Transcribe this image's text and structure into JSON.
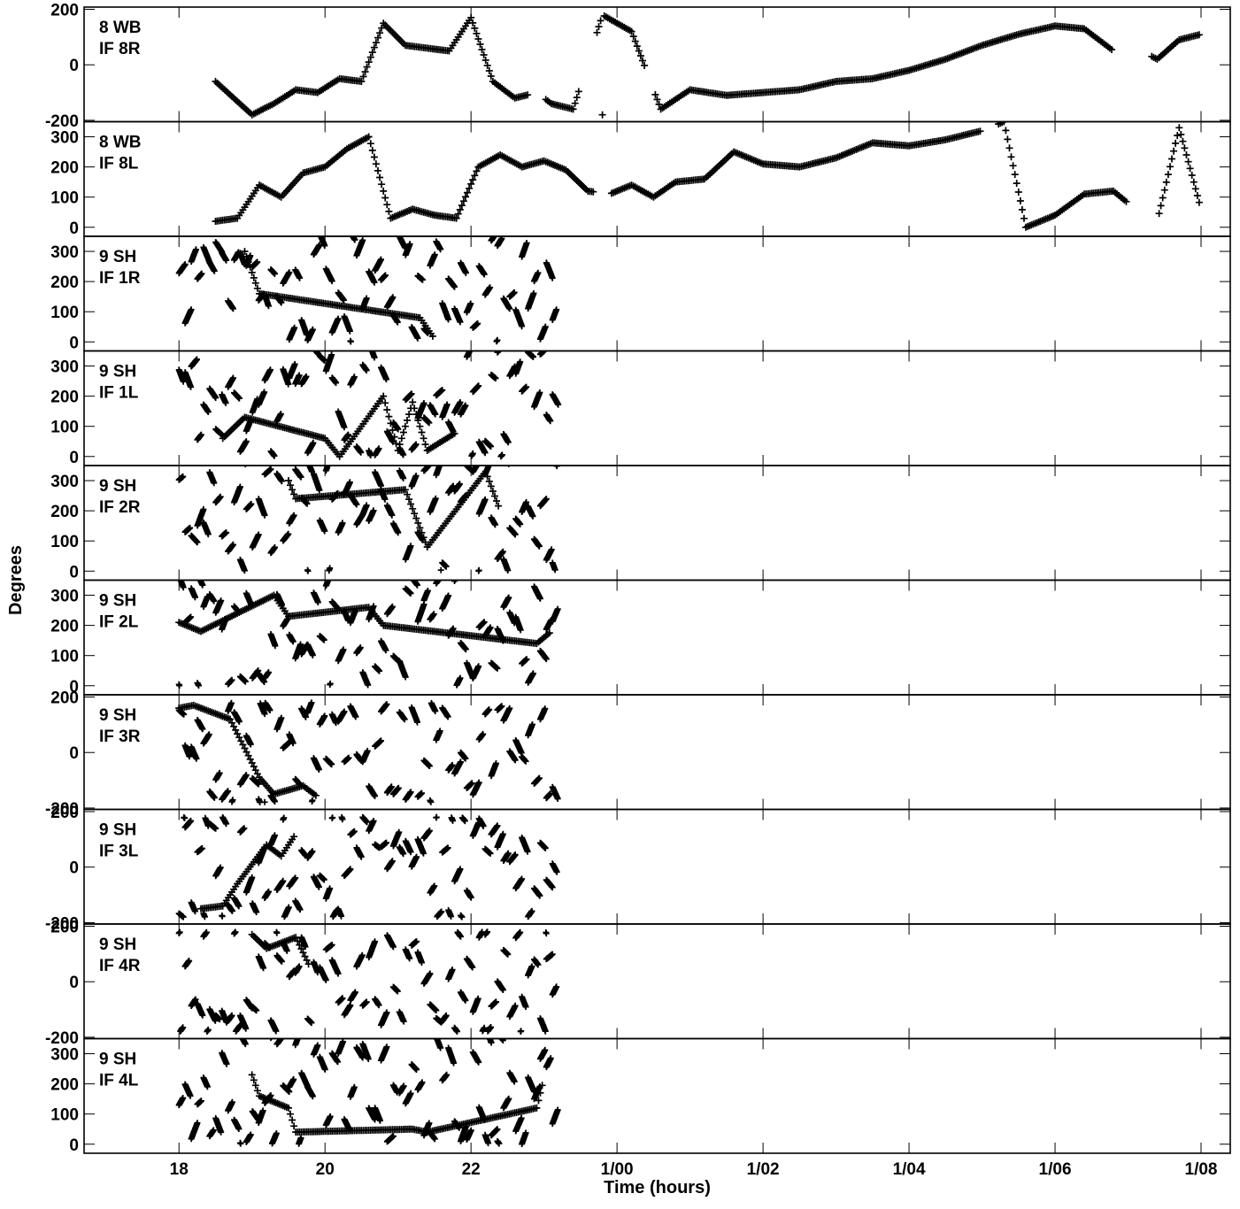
{
  "chart_data": {
    "type": "scatter",
    "marker": "+",
    "xlabel": "Time (hours)",
    "ylabel": "Degrees",
    "x_unit": "hours (18 = 18:00 day 0; 24 = 1/00 next day)",
    "xlim": [
      16.7,
      32.4
    ],
    "x_ticks": [
      {
        "value": 18,
        "label": "18"
      },
      {
        "value": 20,
        "label": "20"
      },
      {
        "value": 22,
        "label": "22"
      },
      {
        "value": 24,
        "label": "1/00"
      },
      {
        "value": 26,
        "label": "1/02"
      },
      {
        "value": 28,
        "label": "1/04"
      },
      {
        "value": 30,
        "label": "1/06"
      },
      {
        "value": 32,
        "label": "1/08"
      }
    ],
    "grid": false,
    "color": "#000000",
    "panels": [
      {
        "line1": "8 WB",
        "line2": "IF 8R",
        "ylim": [
          -205,
          208
        ],
        "yticks": [
          -200,
          0,
          200
        ],
        "kind": "wrap",
        "mod": 360,
        "wrapMin": -180,
        "series": [
          [
            18.5,
            -60
          ],
          [
            19.0,
            -180
          ],
          [
            19.3,
            -140
          ],
          [
            19.6,
            -90
          ],
          [
            19.9,
            -100
          ],
          [
            20.2,
            -50
          ],
          [
            20.5,
            -60
          ],
          [
            20.8,
            150
          ],
          [
            21.1,
            70
          ],
          [
            21.4,
            60
          ],
          [
            21.7,
            50
          ],
          [
            22.0,
            170
          ],
          [
            22.3,
            -60
          ],
          [
            22.6,
            -120
          ],
          [
            22.9,
            -100
          ],
          [
            23.1,
            -140
          ],
          [
            23.4,
            -160
          ],
          [
            23.8,
            180
          ],
          [
            24.2,
            120
          ],
          [
            24.6,
            -160
          ],
          [
            25.0,
            -90
          ],
          [
            25.5,
            -110
          ],
          [
            26.0,
            -100
          ],
          [
            26.5,
            -90
          ],
          [
            27.0,
            -60
          ],
          [
            27.5,
            -50
          ],
          [
            28.0,
            -20
          ],
          [
            28.5,
            20
          ],
          [
            29.0,
            70
          ],
          [
            29.5,
            110
          ],
          [
            30.0,
            140
          ],
          [
            30.4,
            130
          ],
          [
            30.8,
            50
          ],
          [
            31.1,
            60
          ],
          [
            31.4,
            20
          ],
          [
            31.7,
            90
          ],
          [
            32.0,
            110
          ]
        ],
        "gaps": [
          [
            22.8,
            23.0
          ],
          [
            23.5,
            23.7
          ],
          [
            24.4,
            24.5
          ],
          [
            30.8,
            31.3
          ]
        ],
        "dense": null
      },
      {
        "line1": "8 WB",
        "line2": "IF 8L",
        "ylim": [
          -30,
          350
        ],
        "yticks": [
          0,
          100,
          200,
          300
        ],
        "kind": "wrap",
        "mod": 360,
        "wrapMin": 0,
        "series": [
          [
            18.5,
            20
          ],
          [
            18.8,
            30
          ],
          [
            19.1,
            140
          ],
          [
            19.4,
            100
          ],
          [
            19.7,
            180
          ],
          [
            20.0,
            200
          ],
          [
            20.3,
            260
          ],
          [
            20.6,
            300
          ],
          [
            20.9,
            30
          ],
          [
            21.2,
            60
          ],
          [
            21.5,
            40
          ],
          [
            21.8,
            30
          ],
          [
            22.1,
            200
          ],
          [
            22.4,
            240
          ],
          [
            22.7,
            200
          ],
          [
            23.0,
            220
          ],
          [
            23.3,
            190
          ],
          [
            23.6,
            120
          ],
          [
            23.9,
            110
          ],
          [
            24.2,
            140
          ],
          [
            24.5,
            100
          ],
          [
            24.8,
            150
          ],
          [
            25.2,
            160
          ],
          [
            25.6,
            250
          ],
          [
            26.0,
            210
          ],
          [
            26.5,
            200
          ],
          [
            27.0,
            230
          ],
          [
            27.5,
            280
          ],
          [
            28.0,
            270
          ],
          [
            28.5,
            290
          ],
          [
            29.0,
            320
          ],
          [
            29.3,
            350
          ],
          [
            29.6,
            0
          ],
          [
            30.0,
            40
          ],
          [
            30.4,
            110
          ],
          [
            30.8,
            120
          ],
          [
            31.1,
            60
          ],
          [
            31.4,
            20
          ],
          [
            31.7,
            330
          ],
          [
            32.0,
            60
          ]
        ],
        "gaps": [
          [
            23.7,
            23.9
          ],
          [
            29.0,
            29.2
          ],
          [
            31.0,
            31.4
          ]
        ],
        "dense": null
      },
      {
        "line1": "9 SH",
        "line2": "IF 1R",
        "ylim": [
          -30,
          350
        ],
        "yticks": [
          0,
          100,
          200,
          300
        ],
        "kind": "dense",
        "mod": 360,
        "wrapMin": 0,
        "series": [
          [
            18.9,
            300
          ],
          [
            19.1,
            160
          ],
          [
            21.3,
            80
          ],
          [
            21.5,
            10
          ]
        ],
        "gaps": [],
        "dense": [
          18.0,
          23.2,
          8
        ]
      },
      {
        "line1": "9 SH",
        "line2": "IF 1L",
        "ylim": [
          -30,
          350
        ],
        "yticks": [
          0,
          100,
          200,
          300
        ],
        "kind": "dense",
        "mod": 360,
        "wrapMin": 0,
        "series": [
          [
            18.6,
            60
          ],
          [
            18.9,
            130
          ],
          [
            20.0,
            60
          ],
          [
            20.2,
            0
          ],
          [
            20.8,
            200
          ],
          [
            21.0,
            20
          ],
          [
            21.2,
            180
          ],
          [
            21.4,
            20
          ],
          [
            21.8,
            80
          ]
        ],
        "gaps": [],
        "dense": [
          18.0,
          23.2,
          8
        ]
      },
      {
        "line1": "9 SH",
        "line2": "IF 2R",
        "ylim": [
          -30,
          350
        ],
        "yticks": [
          0,
          100,
          200,
          300
        ],
        "kind": "dense",
        "mod": 360,
        "wrapMin": 0,
        "series": [
          [
            19.5,
            300
          ],
          [
            19.6,
            240
          ],
          [
            21.1,
            270
          ],
          [
            21.4,
            80
          ],
          [
            22.2,
            330
          ],
          [
            22.4,
            200
          ]
        ],
        "gaps": [],
        "dense": [
          18.0,
          23.2,
          8
        ]
      },
      {
        "line1": "9 SH",
        "line2": "IF 2L",
        "ylim": [
          -30,
          350
        ],
        "yticks": [
          0,
          100,
          200,
          300
        ],
        "kind": "dense",
        "mod": 360,
        "wrapMin": 0,
        "series": [
          [
            18.0,
            210
          ],
          [
            18.3,
            180
          ],
          [
            19.3,
            300
          ],
          [
            19.5,
            230
          ],
          [
            20.6,
            260
          ],
          [
            20.8,
            200
          ],
          [
            22.9,
            140
          ],
          [
            23.1,
            180
          ]
        ],
        "gaps": [],
        "dense": [
          18.0,
          23.2,
          8
        ]
      },
      {
        "line1": "9 SH",
        "line2": "IF 3R",
        "ylim": [
          -205,
          208
        ],
        "yticks": [
          -200,
          0,
          200
        ],
        "kind": "dense",
        "mod": 360,
        "wrapMin": -180,
        "series": [
          [
            18.0,
            160
          ],
          [
            18.2,
            170
          ],
          [
            18.4,
            150
          ],
          [
            18.7,
            120
          ],
          [
            19.1,
            -90
          ],
          [
            19.3,
            -150
          ],
          [
            19.7,
            -120
          ],
          [
            19.9,
            -160
          ]
        ],
        "gaps": [],
        "dense": [
          18.0,
          23.2,
          8
        ]
      },
      {
        "line1": "9 SH",
        "line2": "IF 3L",
        "ylim": [
          -205,
          208
        ],
        "yticks": [
          -200,
          0,
          200
        ],
        "kind": "dense",
        "mod": 360,
        "wrapMin": -180,
        "series": [
          [
            18.3,
            -150
          ],
          [
            18.6,
            -140
          ],
          [
            18.8,
            -60
          ],
          [
            19.2,
            80
          ],
          [
            19.4,
            40
          ],
          [
            19.6,
            120
          ]
        ],
        "gaps": [],
        "dense": [
          18.0,
          23.2,
          8
        ]
      },
      {
        "line1": "9 SH",
        "line2": "IF 4R",
        "ylim": [
          -205,
          208
        ],
        "yticks": [
          -200,
          0,
          200
        ],
        "kind": "dense",
        "mod": 360,
        "wrapMin": -180,
        "series": [
          [
            19.0,
            170
          ],
          [
            19.2,
            120
          ],
          [
            19.6,
            160
          ],
          [
            19.8,
            50
          ]
        ],
        "gaps": [],
        "dense": [
          18.0,
          23.2,
          8
        ]
      },
      {
        "line1": "9 SH",
        "line2": "IF 4L",
        "ylim": [
          -30,
          350
        ],
        "yticks": [
          0,
          100,
          200,
          300
        ],
        "kind": "dense",
        "mod": 360,
        "wrapMin": 0,
        "series": [
          [
            19.0,
            230
          ],
          [
            19.1,
            160
          ],
          [
            19.5,
            120
          ],
          [
            19.6,
            40
          ],
          [
            21.2,
            50
          ],
          [
            21.4,
            40
          ],
          [
            22.9,
            120
          ],
          [
            23.0,
            220
          ]
        ],
        "gaps": [],
        "dense": [
          18.0,
          23.2,
          8
        ]
      }
    ]
  }
}
